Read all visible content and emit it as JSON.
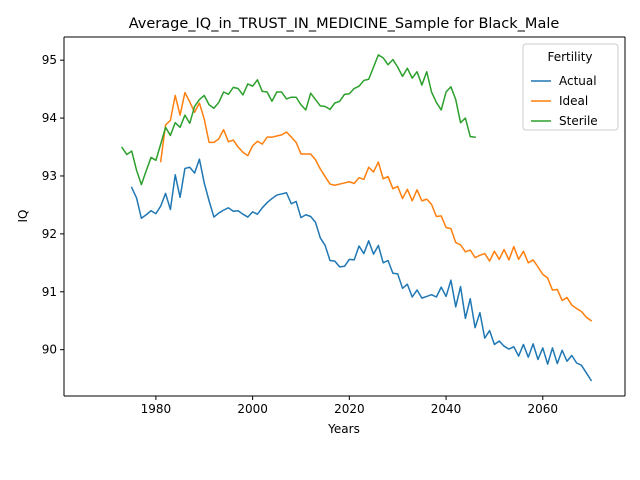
{
  "chart_data": {
    "type": "line",
    "title": "Average_IQ_in_TRUST_IN_MEDICINE_Sample for Black_Male",
    "xlabel": "Years",
    "ylabel": "IQ",
    "xlim": [
      1961,
      2077
    ],
    "ylim": [
      89.2,
      95.4
    ],
    "xticks": [
      1980,
      2000,
      2020,
      2040,
      2060
    ],
    "yticks": [
      90,
      91,
      92,
      93,
      94,
      95
    ],
    "grid": false,
    "legend": {
      "title": "Fertility",
      "placement": "upper right"
    },
    "series": [
      {
        "name": "Actual",
        "color": "#1f77b4",
        "x": [
          1975,
          1976,
          1977,
          1978,
          1979,
          1980,
          1981,
          1982,
          1983,
          1984,
          1985,
          1986,
          1987,
          1988,
          1989,
          1990,
          1991,
          1992,
          1993,
          1994,
          1995,
          1996,
          1997,
          1998,
          1999,
          2000,
          2001,
          2002,
          2003,
          2004,
          2005,
          2006,
          2007,
          2008,
          2009,
          2010,
          2011,
          2012,
          2013,
          2014,
          2015,
          2016,
          2017,
          2018,
          2019,
          2020,
          2021,
          2022,
          2023,
          2024,
          2025,
          2026,
          2027,
          2028,
          2029,
          2030,
          2031,
          2032,
          2033,
          2034,
          2035,
          2036,
          2037,
          2038,
          2039,
          2040,
          2041,
          2042,
          2043,
          2044,
          2045,
          2046,
          2047,
          2048,
          2049,
          2050,
          2051,
          2052,
          2053,
          2054,
          2055,
          2056,
          2057,
          2058,
          2059,
          2060,
          2061,
          2062,
          2063,
          2064,
          2065,
          2066,
          2067,
          2068,
          2069,
          2070
        ],
        "values": [
          92.8,
          92.62,
          92.27,
          92.33,
          92.4,
          92.35,
          92.48,
          92.7,
          92.42,
          93.02,
          92.63,
          93.13,
          93.15,
          93.05,
          93.29,
          92.88,
          92.57,
          92.29,
          92.36,
          92.41,
          92.45,
          92.39,
          92.4,
          92.34,
          92.29,
          92.38,
          92.34,
          92.45,
          92.54,
          92.61,
          92.67,
          92.69,
          92.71,
          92.52,
          92.56,
          92.28,
          92.33,
          92.3,
          92.2,
          91.93,
          91.8,
          91.54,
          91.53,
          91.43,
          91.44,
          91.56,
          91.55,
          91.79,
          91.66,
          91.88,
          91.65,
          91.8,
          91.5,
          91.54,
          91.32,
          91.31,
          91.06,
          91.13,
          90.91,
          91.03,
          90.89,
          90.92,
          90.95,
          90.91,
          91.08,
          90.92,
          91.2,
          90.74,
          91.09,
          90.54,
          90.88,
          90.38,
          90.64,
          90.2,
          90.33,
          90.09,
          90.15,
          90.06,
          90.01,
          90.05,
          89.89,
          90.09,
          89.87,
          90.1,
          89.83,
          90.03,
          89.75,
          90.03,
          89.76,
          89.99,
          89.8,
          89.9,
          89.77,
          89.73,
          89.6,
          89.47
        ]
      },
      {
        "name": "Ideal",
        "color": "#ff7f0e",
        "x": [
          1981,
          1982,
          1983,
          1984,
          1985,
          1986,
          1987,
          1988,
          1989,
          1990,
          1991,
          1992,
          1993,
          1994,
          1995,
          1996,
          1997,
          1998,
          1999,
          2000,
          2001,
          2002,
          2003,
          2004,
          2005,
          2006,
          2007,
          2008,
          2009,
          2010,
          2011,
          2012,
          2013,
          2014,
          2015,
          2016,
          2017,
          2018,
          2019,
          2020,
          2021,
          2022,
          2023,
          2024,
          2025,
          2026,
          2027,
          2028,
          2029,
          2030,
          2031,
          2032,
          2033,
          2034,
          2035,
          2036,
          2037,
          2038,
          2039,
          2040,
          2041,
          2042,
          2043,
          2044,
          2045,
          2046,
          2047,
          2048,
          2049,
          2050,
          2051,
          2052,
          2053,
          2054,
          2055,
          2056,
          2057,
          2058,
          2059,
          2060,
          2061,
          2062,
          2063,
          2064,
          2065,
          2066,
          2067,
          2068,
          2069,
          2070
        ],
        "values": [
          93.25,
          93.88,
          93.96,
          94.39,
          94.05,
          94.44,
          94.28,
          94.1,
          94.26,
          93.98,
          93.58,
          93.58,
          93.64,
          93.8,
          93.59,
          93.62,
          93.5,
          93.41,
          93.35,
          93.52,
          93.6,
          93.55,
          93.67,
          93.67,
          93.69,
          93.71,
          93.76,
          93.67,
          93.58,
          93.38,
          93.38,
          93.38,
          93.28,
          93.12,
          92.99,
          92.86,
          92.84,
          92.86,
          92.88,
          92.9,
          92.87,
          92.97,
          92.94,
          93.15,
          93.07,
          93.24,
          92.95,
          92.99,
          92.78,
          92.82,
          92.61,
          92.77,
          92.57,
          92.76,
          92.57,
          92.6,
          92.51,
          92.3,
          92.31,
          92.11,
          92.09,
          91.85,
          91.81,
          91.69,
          91.72,
          91.59,
          91.63,
          91.66,
          91.53,
          91.7,
          91.56,
          91.73,
          91.55,
          91.78,
          91.56,
          91.7,
          91.5,
          91.55,
          91.43,
          91.3,
          91.24,
          91.03,
          91.04,
          90.85,
          90.9,
          90.77,
          90.71,
          90.66,
          90.56,
          90.5
        ]
      },
      {
        "name": "Sterile",
        "color": "#2ca02c",
        "x": [
          1973,
          1974,
          1975,
          1976,
          1977,
          1978,
          1979,
          1980,
          1981,
          1982,
          1983,
          1984,
          1985,
          1986,
          1987,
          1988,
          1989,
          1990,
          1991,
          1992,
          1993,
          1994,
          1995,
          1996,
          1997,
          1998,
          1999,
          2000,
          2001,
          2002,
          2003,
          2004,
          2005,
          2006,
          2007,
          2008,
          2009,
          2010,
          2011,
          2012,
          2013,
          2014,
          2015,
          2016,
          2017,
          2018,
          2019,
          2020,
          2021,
          2022,
          2023,
          2024,
          2025,
          2026,
          2027,
          2028,
          2029,
          2030,
          2031,
          2032,
          2033,
          2034,
          2035,
          2036,
          2037,
          2038,
          2039,
          2040,
          2041,
          2042,
          2043,
          2044,
          2045,
          2046
        ],
        "values": [
          93.49,
          93.37,
          93.43,
          93.1,
          92.85,
          93.09,
          93.32,
          93.27,
          93.55,
          93.84,
          93.7,
          93.92,
          93.84,
          94.05,
          93.91,
          94.2,
          94.32,
          94.39,
          94.23,
          94.17,
          94.27,
          94.45,
          94.41,
          94.53,
          94.51,
          94.4,
          94.59,
          94.55,
          94.66,
          94.46,
          94.45,
          94.29,
          94.45,
          94.45,
          94.33,
          94.36,
          94.36,
          94.23,
          94.14,
          94.43,
          94.32,
          94.21,
          94.2,
          94.15,
          94.26,
          94.29,
          94.41,
          94.42,
          94.51,
          94.55,
          94.65,
          94.67,
          94.88,
          95.09,
          95.04,
          94.92,
          95.01,
          94.88,
          94.72,
          94.86,
          94.69,
          94.8,
          94.57,
          94.8,
          94.45,
          94.27,
          94.14,
          94.45,
          94.54,
          94.32,
          93.92,
          94.0,
          93.68,
          93.67
        ]
      }
    ]
  }
}
